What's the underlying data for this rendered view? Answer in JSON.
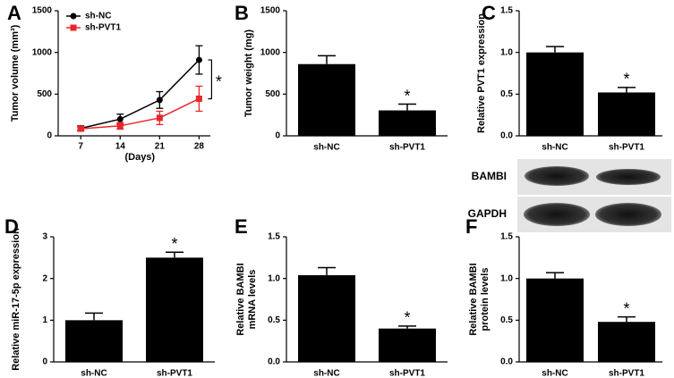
{
  "chart_data": [
    {
      "type": "line",
      "label": "A",
      "ylabel": "Tumor volume (mm³)",
      "xlabel": "(Days)",
      "x": [
        7,
        14,
        21,
        28
      ],
      "xlim": [
        3,
        30
      ],
      "xticks": [
        7,
        14,
        21,
        28
      ],
      "ylim": [
        0,
        1500
      ],
      "yticks": [
        0,
        500,
        1000,
        1500
      ],
      "annotation": "*",
      "series": [
        {
          "name": "sh-NC",
          "color": "#000000",
          "marker": "circle",
          "values": [
            90,
            200,
            430,
            910
          ],
          "errors": [
            30,
            60,
            100,
            170
          ]
        },
        {
          "name": "sh-PVT1",
          "color": "#e8262b",
          "marker": "square",
          "values": [
            85,
            120,
            215,
            445
          ],
          "errors": [
            20,
            40,
            80,
            150
          ]
        }
      ]
    },
    {
      "type": "bar",
      "label": "B",
      "ylabel": "Tumor weight (mg)",
      "categories": [
        "sh-NC",
        "sh-PVT1"
      ],
      "values": [
        860,
        305
      ],
      "errors": [
        100,
        75
      ],
      "color": "#000000",
      "annotation": "*",
      "ylim": [
        0,
        1500
      ],
      "yticks": [
        0,
        500,
        1000,
        1500
      ]
    },
    {
      "type": "bar",
      "label": "C",
      "ylabel": "Relative PVT1 expression",
      "categories": [
        "sh-NC",
        "sh-PVT1"
      ],
      "values": [
        1.0,
        0.52
      ],
      "errors": [
        0.07,
        0.06
      ],
      "color": "#000000",
      "annotation": "*",
      "ylim": [
        0,
        1.5
      ],
      "yticks": [
        {
          "value": 0,
          "label": "0.0"
        },
        {
          "value": 0.5,
          "label": "0.5"
        },
        {
          "value": 1,
          "label": "1.0"
        },
        {
          "value": 1.5,
          "label": "1.5"
        }
      ]
    },
    {
      "type": "bar",
      "label": "D",
      "ylabel": "Relative miR-17-5p expression",
      "categories": [
        "sh-NC",
        "sh-PVT1"
      ],
      "values": [
        1.0,
        2.5
      ],
      "errors": [
        0.17,
        0.13
      ],
      "color": "#000000",
      "annotation": "*",
      "ylim": [
        0,
        3
      ],
      "yticks": [
        0,
        1,
        2,
        3
      ]
    },
    {
      "type": "bar",
      "label": "E",
      "ylabel": [
        "Relative BAMBI",
        "mRNA levels"
      ],
      "categories": [
        "sh-NC",
        "sh-PVT1"
      ],
      "values": [
        1.04,
        0.4
      ],
      "errors": [
        0.09,
        0.03
      ],
      "color": "#000000",
      "annotation": "*",
      "ylim": [
        0,
        1.5
      ],
      "yticks": [
        {
          "value": 0,
          "label": "0.0"
        },
        {
          "value": 0.5,
          "label": "0.5"
        },
        {
          "value": 1,
          "label": "1.0"
        },
        {
          "value": 1.5,
          "label": "1.5"
        }
      ]
    },
    {
      "type": "bar",
      "label": "F",
      "ylabel": [
        "Relative BAMBI",
        "protein levels"
      ],
      "categories": [
        "sh-NC",
        "sh-PVT1"
      ],
      "values": [
        1.0,
        0.48
      ],
      "errors": [
        0.07,
        0.06
      ],
      "color": "#000000",
      "annotation": "*",
      "blot_labels": [
        "BAMBI",
        "GAPDH"
      ],
      "ylim": [
        0,
        1.5
      ],
      "yticks": [
        {
          "value": 0,
          "label": "0.0"
        },
        {
          "value": 0.5,
          "label": "0.5"
        },
        {
          "value": 1,
          "label": "1.0"
        },
        {
          "value": 1.5,
          "label": "1.5"
        }
      ]
    }
  ]
}
